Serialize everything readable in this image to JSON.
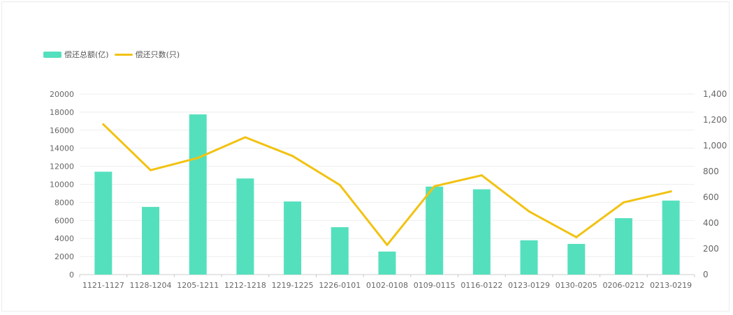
{
  "colors": {
    "bar": "#55e0bd",
    "line": "#f2c211",
    "grid": "#eeeeee",
    "axis": "#cccccc",
    "tick_text": "#666666"
  },
  "legend": {
    "bar_label": "偿还总额(亿)",
    "line_label": "偿还只数(只)"
  },
  "chart_data": {
    "type": "bar",
    "categories": [
      "1121-1127",
      "1128-1204",
      "1205-1211",
      "1212-1218",
      "1219-1225",
      "1226-0101",
      "0102-0108",
      "0109-0115",
      "0116-0122",
      "0123-0129",
      "0130-0205",
      "0206-0212",
      "0213-0219"
    ],
    "series": [
      {
        "name": "偿还总额(亿)",
        "type": "bar",
        "axis": "left",
        "values": [
          11400,
          7500,
          17750,
          10650,
          8100,
          5250,
          2550,
          9750,
          9450,
          3800,
          3400,
          6250,
          8200
        ]
      },
      {
        "name": "偿还只数(只)",
        "type": "line",
        "axis": "right",
        "values": [
          1165,
          810,
          905,
          1065,
          920,
          695,
          230,
          685,
          770,
          490,
          290,
          560,
          645
        ]
      }
    ],
    "y_left": {
      "min": 0,
      "max": 20000,
      "ticks": [
        "0",
        "2000",
        "4000",
        "6000",
        "8000",
        "10000",
        "12000",
        "14000",
        "16000",
        "18000",
        "20000"
      ]
    },
    "y_right": {
      "min": 0,
      "max": 1400,
      "ticks": [
        "0",
        "200",
        "400",
        "600",
        "800",
        "1,000",
        "1,200",
        "1,400"
      ]
    },
    "legend_position": "top-left",
    "grid": true
  }
}
